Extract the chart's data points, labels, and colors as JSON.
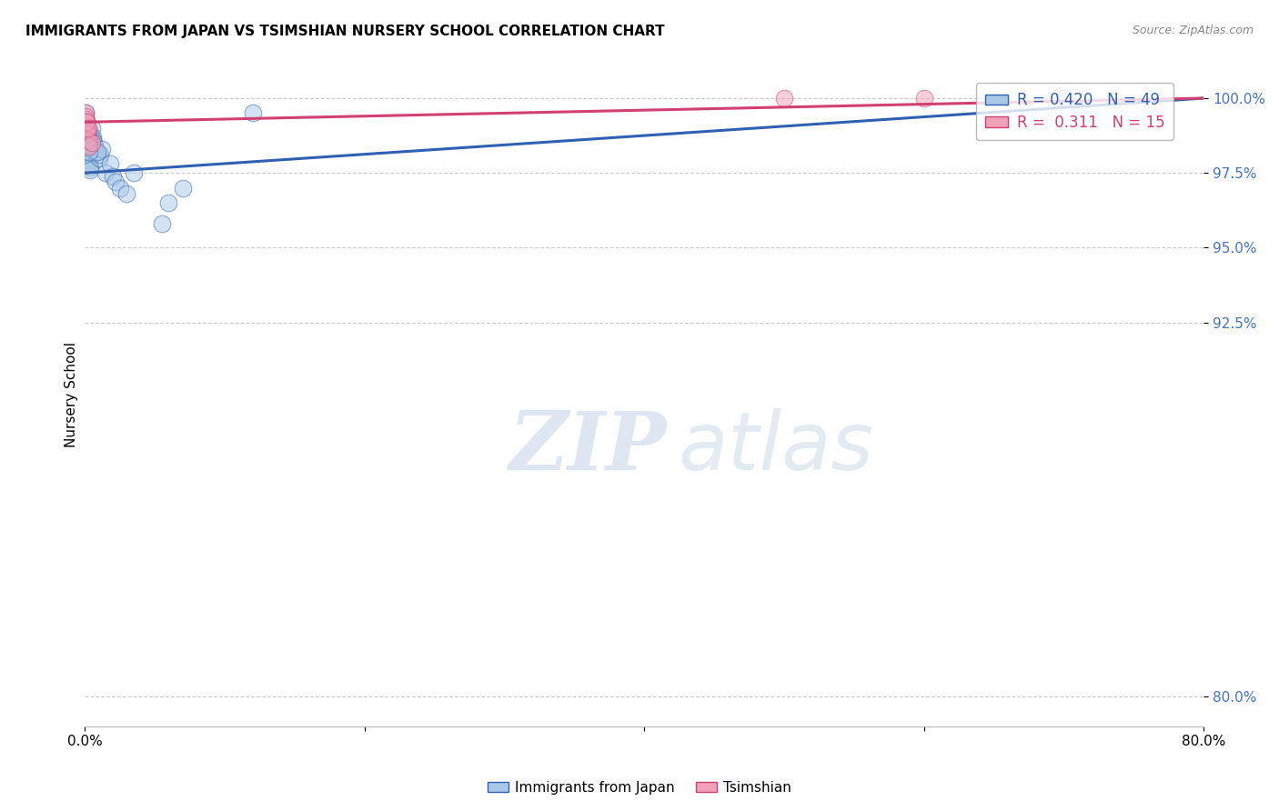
{
  "title": "IMMIGRANTS FROM JAPAN VS TSIMSHIAN NURSERY SCHOOL CORRELATION CHART",
  "source": "Source: ZipAtlas.com",
  "ylabel": "Nursery School",
  "ytick_labels": [
    "100.0%",
    "97.5%",
    "95.0%",
    "92.5%",
    "80.0%"
  ],
  "ytick_values": [
    100.0,
    97.5,
    95.0,
    92.5,
    80.0
  ],
  "xlim_pct": [
    0.0,
    80.0
  ],
  "ylim_pct": [
    79.0,
    101.2
  ],
  "legend_japan": "Immigrants from Japan",
  "legend_tsimshian": "Tsimshian",
  "r_japan": 0.42,
  "n_japan": 49,
  "r_tsimshian": 0.311,
  "n_tsimshian": 15,
  "color_japan": "#a8c8e8",
  "color_tsimshian": "#f0a0b8",
  "color_japan_line": "#3060b0",
  "color_tsimshian_line": "#d04070",
  "japan_x": [
    0.05,
    0.08,
    0.1,
    0.12,
    0.13,
    0.15,
    0.16,
    0.18,
    0.19,
    0.2,
    0.22,
    0.24,
    0.25,
    0.27,
    0.28,
    0.3,
    0.32,
    0.35,
    0.38,
    0.4,
    0.42,
    0.45,
    0.5,
    0.55,
    0.6,
    0.65,
    0.7,
    0.8,
    1.0,
    1.1,
    1.2,
    1.5,
    1.8,
    2.0,
    2.2,
    2.5,
    3.0,
    3.5,
    0.9,
    0.14,
    0.17,
    0.21,
    0.26,
    0.33,
    5.5,
    6.0,
    7.0,
    12.0,
    70.0
  ],
  "japan_y": [
    99.5,
    99.3,
    99.1,
    98.9,
    99.0,
    99.2,
    98.8,
    98.7,
    98.6,
    98.5,
    98.4,
    98.3,
    98.2,
    98.1,
    98.0,
    97.9,
    97.8,
    97.7,
    97.6,
    98.8,
    98.5,
    98.3,
    99.0,
    98.7,
    98.6,
    98.5,
    98.4,
    98.2,
    98.0,
    98.1,
    98.3,
    97.5,
    97.8,
    97.4,
    97.2,
    97.0,
    96.8,
    97.5,
    98.2,
    99.0,
    98.8,
    98.6,
    98.4,
    98.2,
    95.8,
    96.5,
    97.0,
    99.5,
    100.0
  ],
  "tsimshian_x": [
    0.05,
    0.08,
    0.1,
    0.12,
    0.15,
    0.18,
    0.2,
    0.25,
    0.3,
    0.5,
    50.0,
    60.0,
    0.06,
    0.09,
    0.22
  ],
  "tsimshian_y": [
    99.5,
    99.3,
    99.1,
    98.9,
    99.2,
    99.0,
    98.8,
    98.6,
    98.4,
    98.5,
    100.0,
    100.0,
    99.4,
    99.2,
    99.0
  ],
  "watermark_zip": "ZIP",
  "watermark_atlas": "atlas",
  "background_color": "#ffffff",
  "grid_color": "#cccccc",
  "japan_trend_x0": 0.0,
  "japan_trend_y0": 97.5,
  "japan_trend_x1": 80.0,
  "japan_trend_y1": 100.0,
  "tsimshian_trend_x0": 0.0,
  "tsimshian_trend_y0": 99.2,
  "tsimshian_trend_x1": 80.0,
  "tsimshian_trend_y1": 100.0
}
